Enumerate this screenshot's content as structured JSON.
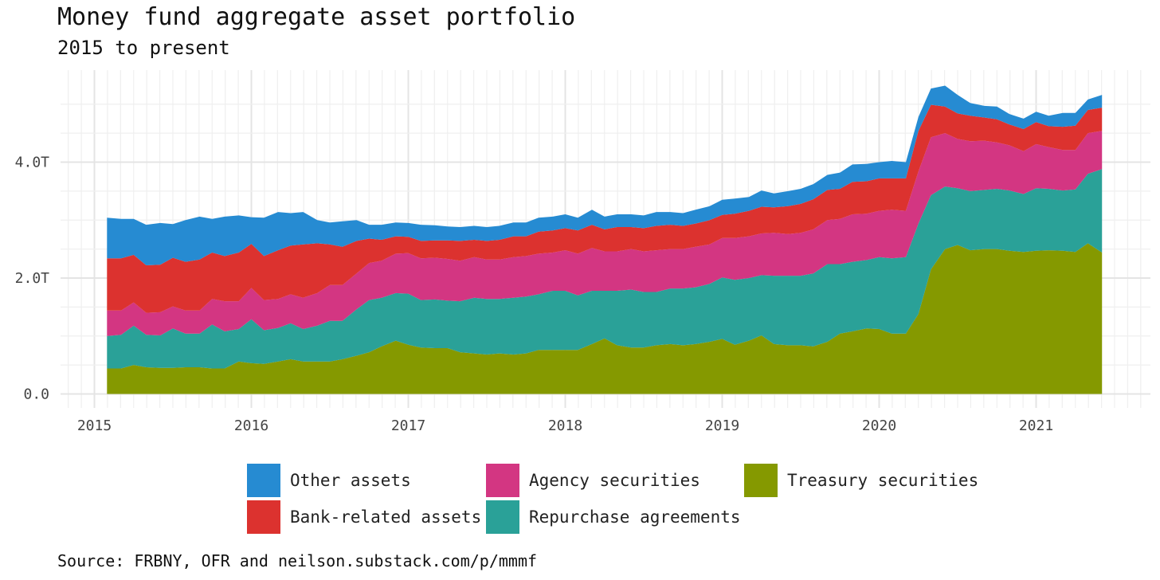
{
  "chart_data": {
    "type": "area",
    "stacked": true,
    "title": "Money fund aggregate asset portfolio",
    "subtitle": "2015 to present",
    "source": "Source: FRBNY, OFR and neilson.substack.com/p/mmmf",
    "xlabel": "",
    "ylabel": "",
    "x_ticks": [
      "2015",
      "2016",
      "2017",
      "2018",
      "2019",
      "2020",
      "2021"
    ],
    "y_ticks": [
      "0.0",
      "2.0T",
      "4.0T"
    ],
    "y_tick_values": [
      0,
      2.0,
      4.0
    ],
    "ylim": [
      0,
      5.4
    ],
    "xlim": [
      2014.8,
      2021.72
    ],
    "grid": true,
    "legend_position": "bottom",
    "x": [
      2015.08,
      2015.17,
      2015.25,
      2015.33,
      2015.42,
      2015.5,
      2015.58,
      2015.67,
      2015.75,
      2015.83,
      2015.92,
      2016.0,
      2016.08,
      2016.17,
      2016.25,
      2016.33,
      2016.42,
      2016.5,
      2016.58,
      2016.67,
      2016.75,
      2016.83,
      2016.92,
      2017.0,
      2017.08,
      2017.17,
      2017.25,
      2017.33,
      2017.42,
      2017.5,
      2017.58,
      2017.67,
      2017.75,
      2017.83,
      2017.92,
      2018.0,
      2018.08,
      2018.17,
      2018.25,
      2018.33,
      2018.42,
      2018.5,
      2018.58,
      2018.67,
      2018.75,
      2018.83,
      2018.92,
      2019.0,
      2019.08,
      2019.17,
      2019.25,
      2019.33,
      2019.42,
      2019.5,
      2019.58,
      2019.67,
      2019.75,
      2019.83,
      2019.92,
      2020.0,
      2020.08,
      2020.17,
      2020.25,
      2020.33,
      2020.42,
      2020.5,
      2020.58,
      2020.67,
      2020.75,
      2020.83,
      2020.92,
      2021.0,
      2021.08,
      2021.17,
      2021.25,
      2021.33,
      2021.42
    ],
    "series": [
      {
        "name": "Treasury securities",
        "color": "#859900",
        "values": [
          0.44,
          0.44,
          0.5,
          0.46,
          0.45,
          0.45,
          0.46,
          0.46,
          0.44,
          0.44,
          0.56,
          0.53,
          0.52,
          0.56,
          0.6,
          0.56,
          0.56,
          0.56,
          0.6,
          0.66,
          0.72,
          0.82,
          0.92,
          0.85,
          0.8,
          0.79,
          0.79,
          0.72,
          0.7,
          0.68,
          0.7,
          0.68,
          0.7,
          0.76,
          0.76,
          0.76,
          0.76,
          0.86,
          0.96,
          0.84,
          0.8,
          0.8,
          0.84,
          0.86,
          0.84,
          0.86,
          0.9,
          0.95,
          0.85,
          0.92,
          1.01,
          0.86,
          0.84,
          0.84,
          0.82,
          0.9,
          1.04,
          1.08,
          1.13,
          1.12,
          1.04,
          1.04,
          1.38,
          2.15,
          2.5,
          2.57,
          2.48,
          2.5,
          2.5,
          2.47,
          2.45,
          2.47,
          2.48,
          2.47,
          2.45,
          2.6,
          2.44
        ]
      },
      {
        "name": "Repurchase agreements",
        "color": "#2aa198",
        "values": [
          0.56,
          0.58,
          0.68,
          0.56,
          0.56,
          0.68,
          0.58,
          0.58,
          0.76,
          0.64,
          0.56,
          0.76,
          0.58,
          0.58,
          0.62,
          0.56,
          0.62,
          0.7,
          0.66,
          0.8,
          0.9,
          0.84,
          0.82,
          0.88,
          0.82,
          0.84,
          0.82,
          0.88,
          0.96,
          0.96,
          0.94,
          0.98,
          0.98,
          0.96,
          1.02,
          1.02,
          0.94,
          0.92,
          0.82,
          0.94,
          1.0,
          0.96,
          0.92,
          0.96,
          0.98,
          0.98,
          1.0,
          1.06,
          1.12,
          1.08,
          1.04,
          1.18,
          1.2,
          1.2,
          1.26,
          1.34,
          1.2,
          1.2,
          1.18,
          1.24,
          1.3,
          1.32,
          1.56,
          1.28,
          1.08,
          0.98,
          1.02,
          1.02,
          1.04,
          1.04,
          1.0,
          1.08,
          1.06,
          1.04,
          1.08,
          1.2,
          1.44
        ]
      },
      {
        "name": "Agency securities",
        "color": "#d33682",
        "values": [
          0.44,
          0.42,
          0.4,
          0.38,
          0.4,
          0.38,
          0.4,
          0.4,
          0.44,
          0.52,
          0.48,
          0.54,
          0.52,
          0.5,
          0.5,
          0.54,
          0.56,
          0.62,
          0.62,
          0.62,
          0.64,
          0.64,
          0.68,
          0.7,
          0.72,
          0.72,
          0.72,
          0.7,
          0.7,
          0.68,
          0.68,
          0.7,
          0.7,
          0.7,
          0.66,
          0.7,
          0.72,
          0.74,
          0.68,
          0.68,
          0.7,
          0.7,
          0.72,
          0.68,
          0.68,
          0.7,
          0.68,
          0.68,
          0.72,
          0.72,
          0.72,
          0.74,
          0.72,
          0.74,
          0.76,
          0.76,
          0.78,
          0.82,
          0.8,
          0.8,
          0.84,
          0.8,
          0.9,
          1.0,
          0.92,
          0.85,
          0.86,
          0.85,
          0.8,
          0.78,
          0.74,
          0.76,
          0.72,
          0.7,
          0.68,
          0.7,
          0.66
        ]
      },
      {
        "name": "Bank-related assets",
        "color": "#dc322f",
        "values": [
          0.9,
          0.9,
          0.82,
          0.82,
          0.82,
          0.84,
          0.84,
          0.88,
          0.8,
          0.78,
          0.84,
          0.76,
          0.76,
          0.84,
          0.84,
          0.92,
          0.86,
          0.7,
          0.66,
          0.56,
          0.42,
          0.36,
          0.3,
          0.28,
          0.3,
          0.3,
          0.32,
          0.34,
          0.3,
          0.32,
          0.34,
          0.36,
          0.34,
          0.38,
          0.38,
          0.38,
          0.4,
          0.4,
          0.38,
          0.42,
          0.38,
          0.4,
          0.42,
          0.42,
          0.4,
          0.4,
          0.42,
          0.4,
          0.42,
          0.44,
          0.46,
          0.44,
          0.48,
          0.5,
          0.52,
          0.52,
          0.52,
          0.56,
          0.56,
          0.56,
          0.54,
          0.56,
          0.7,
          0.56,
          0.46,
          0.44,
          0.44,
          0.4,
          0.4,
          0.36,
          0.38,
          0.38,
          0.36,
          0.4,
          0.42,
          0.4,
          0.4
        ]
      },
      {
        "name": "Other assets",
        "color": "#268bd2",
        "values": [
          0.7,
          0.68,
          0.62,
          0.7,
          0.72,
          0.58,
          0.72,
          0.74,
          0.58,
          0.68,
          0.64,
          0.46,
          0.66,
          0.66,
          0.56,
          0.56,
          0.4,
          0.38,
          0.44,
          0.36,
          0.24,
          0.26,
          0.24,
          0.24,
          0.28,
          0.26,
          0.24,
          0.24,
          0.24,
          0.24,
          0.24,
          0.24,
          0.24,
          0.24,
          0.24,
          0.24,
          0.22,
          0.26,
          0.22,
          0.22,
          0.22,
          0.22,
          0.24,
          0.22,
          0.22,
          0.24,
          0.24,
          0.26,
          0.26,
          0.24,
          0.28,
          0.24,
          0.26,
          0.26,
          0.26,
          0.26,
          0.28,
          0.3,
          0.3,
          0.28,
          0.3,
          0.28,
          0.24,
          0.28,
          0.36,
          0.32,
          0.22,
          0.2,
          0.22,
          0.18,
          0.18,
          0.18,
          0.18,
          0.24,
          0.22,
          0.18,
          0.22
        ]
      }
    ]
  },
  "legend": {
    "items": [
      {
        "label": "Other assets",
        "color": "#268bd2"
      },
      {
        "label": "Bank-related assets",
        "color": "#dc322f"
      },
      {
        "label": "Agency securities",
        "color": "#d33682"
      },
      {
        "label": "Repurchase agreements",
        "color": "#2aa198"
      },
      {
        "label": "Treasury securities",
        "color": "#859900"
      }
    ]
  }
}
